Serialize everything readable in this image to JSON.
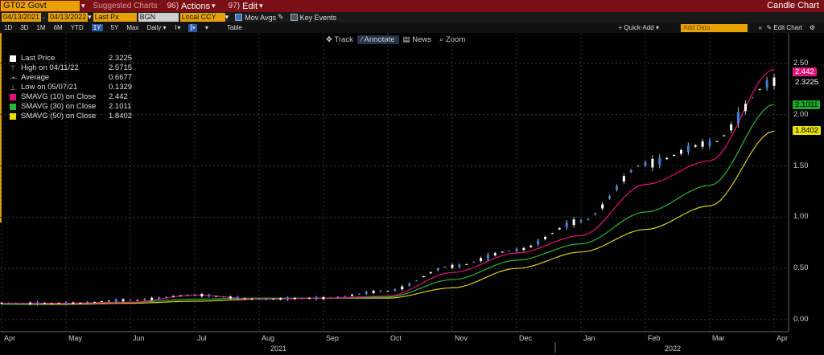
{
  "top_bar": {
    "ticker": "GT02 Govt",
    "suggested_charts": "Suggested Charts",
    "actions_num": "96)",
    "actions_label": "Actions",
    "edit_num": "97)",
    "edit_label": "Edit",
    "chart_title": "Candle Chart"
  },
  "controls": {
    "start_date": "04/13/2021",
    "end_date": "04/13/2022",
    "field": "Last Px",
    "source": "BGN",
    "currency": "Local CCY",
    "mov_avgs": "Mov Avgs",
    "key_events": "Key Events"
  },
  "periods": [
    "1D",
    "3D",
    "1M",
    "6M",
    "YTD",
    "1Y",
    "5Y",
    "Max"
  ],
  "selected_period": "1Y",
  "frequency": "Daily",
  "table_label": "Table",
  "quick_add": "Quick-Add",
  "add_data_placeholder": "Add Data",
  "edit_chart": "Edit Chart",
  "tools": {
    "track": "Track",
    "annotate": "Annotate",
    "news": "News",
    "zoom": "Zoom"
  },
  "legend": [
    {
      "name": "Last Price",
      "value": "2.3225",
      "color": "#ffffff",
      "kind": "swatch"
    },
    {
      "name": "High on 04/11/22",
      "value": "2.5715",
      "color": "#aaaaaa",
      "kind": "high"
    },
    {
      "name": "Average",
      "value": "0.6677",
      "color": "#aaaaaa",
      "kind": "avg"
    },
    {
      "name": "Low on 05/07/21",
      "value": "0.1329",
      "color": "#aaaaaa",
      "kind": "low"
    },
    {
      "name": "SMAVG (10)  on Close",
      "value": "2.442",
      "color": "#e0147a",
      "kind": "swatch"
    },
    {
      "name": "SMAVG (30)  on Close",
      "value": "2.1011",
      "color": "#2bb53a",
      "kind": "swatch"
    },
    {
      "name": "SMAVG (50)  on Close",
      "value": "1.8402",
      "color": "#e8e000",
      "kind": "swatch"
    }
  ],
  "value_tags": [
    {
      "label": "2.442",
      "value": 2.442,
      "bg": "#e0147a",
      "fg": "#ffffff"
    },
    {
      "label": "2.3225",
      "value": 2.3225,
      "bg": "#000000",
      "fg": "#ffffff"
    },
    {
      "label": "2.1011",
      "value": 2.1011,
      "bg": "#1aa52b",
      "fg": "#000000"
    },
    {
      "label": "1.8402",
      "value": 1.8402,
      "bg": "#e8e000",
      "fg": "#000000"
    }
  ],
  "x_axis": {
    "months": [
      "Apr",
      "May",
      "Jun",
      "Jul",
      "Aug",
      "Sep",
      "Oct",
      "Nov",
      "Dec",
      "Jan",
      "Feb",
      "Mar",
      "Apr"
    ],
    "years": [
      "2021",
      "2022"
    ]
  },
  "chart_data": {
    "type": "line",
    "title": "",
    "y_ticks": [
      "0.00",
      "0.50",
      "1.00",
      "1.50",
      "2.00",
      "2.50"
    ],
    "ylim": [
      -0.05,
      2.65
    ],
    "x": [
      "2021-04",
      "2021-05",
      "2021-06",
      "2021-07",
      "2021-08",
      "2021-09",
      "2021-10",
      "2021-11",
      "2021-12",
      "2022-01",
      "2022-02",
      "2022-03",
      "2022-04"
    ],
    "series": [
      {
        "name": "Last Price",
        "color": "#ffffff",
        "values": [
          0.16,
          0.16,
          0.19,
          0.24,
          0.2,
          0.21,
          0.28,
          0.52,
          0.68,
          0.96,
          1.52,
          1.72,
          2.3225
        ]
      },
      {
        "name": "SMAVG (10)  on Close",
        "color": "#e0147a",
        "values": [
          0.16,
          0.16,
          0.17,
          0.24,
          0.2,
          0.21,
          0.23,
          0.46,
          0.65,
          0.82,
          1.32,
          1.55,
          2.442
        ]
      },
      {
        "name": "SMAVG (30)  on Close",
        "color": "#2bb53a",
        "values": [
          0.15,
          0.16,
          0.17,
          0.2,
          0.21,
          0.21,
          0.22,
          0.39,
          0.58,
          0.74,
          1.05,
          1.31,
          2.1011
        ]
      },
      {
        "name": "SMAVG (50)  on Close",
        "color": "#d8d020",
        "values": [
          0.15,
          0.15,
          0.16,
          0.18,
          0.2,
          0.21,
          0.21,
          0.31,
          0.5,
          0.66,
          0.88,
          1.11,
          1.8402
        ]
      }
    ],
    "grid": true
  }
}
